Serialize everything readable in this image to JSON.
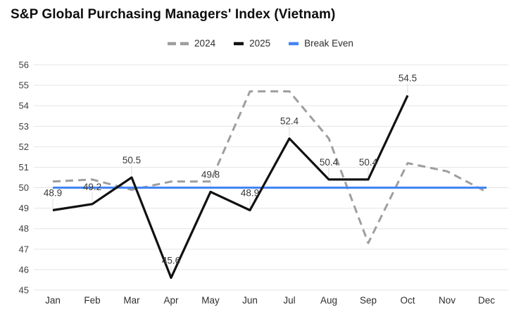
{
  "chart_data": {
    "type": "line",
    "title": "S&P Global Purchasing Managers' Index (Vietnam)",
    "categories": [
      "Jan",
      "Feb",
      "Mar",
      "Apr",
      "May",
      "Jun",
      "Jul",
      "Aug",
      "Sep",
      "Oct",
      "Nov",
      "Dec"
    ],
    "series": [
      {
        "name": "2024",
        "values": [
          50.3,
          50.4,
          49.9,
          50.3,
          50.3,
          54.7,
          54.7,
          52.4,
          47.3,
          51.2,
          50.8,
          49.8
        ],
        "color": "#9e9e9e",
        "style": "dashed",
        "line_width": 3,
        "show_labels": false
      },
      {
        "name": "2025",
        "values": [
          48.9,
          49.2,
          50.5,
          45.6,
          49.8,
          48.9,
          52.4,
          50.4,
          50.4,
          54.5
        ],
        "color": "#111111",
        "style": "solid",
        "line_width": 3.2,
        "show_labels": true
      },
      {
        "name": "Break Even",
        "values": [
          50,
          50,
          50,
          50,
          50,
          50,
          50,
          50,
          50,
          50,
          50,
          50
        ],
        "color": "#4285f4",
        "style": "solid",
        "line_width": 3,
        "show_labels": false
      }
    ],
    "xlabel": "",
    "ylabel": "",
    "ylim": [
      45,
      56
    ],
    "ytick_step": 1,
    "grid": "horizontal",
    "legend_position": "top"
  },
  "colors": {
    "background": "#ffffff",
    "grid": "#e4e4e4",
    "axis_text": "#3f3f3f",
    "annotation_text": "#383838",
    "annotation_stem": "#dedede",
    "title_text": "#0d0d0d"
  }
}
